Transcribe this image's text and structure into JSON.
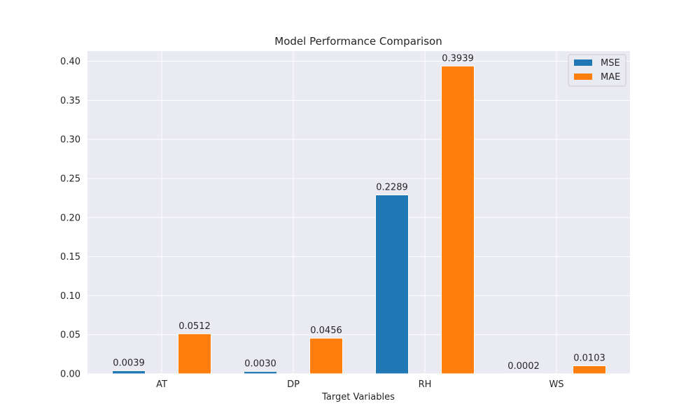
{
  "chart_data": {
    "type": "bar",
    "title": "Model Performance Comparison",
    "xlabel": "Target Variables",
    "ylabel": "",
    "categories": [
      "AT",
      "DP",
      "RH",
      "WS"
    ],
    "series": [
      {
        "name": "MSE",
        "values": [
          0.0039,
          0.003,
          0.2289,
          0.0002
        ],
        "labels": [
          "0.0039",
          "0.0030",
          "0.2289",
          "0.0002"
        ],
        "color": "#1f77b4"
      },
      {
        "name": "MAE",
        "values": [
          0.0512,
          0.0456,
          0.3939,
          0.0103
        ],
        "labels": [
          "0.0512",
          "0.0456",
          "0.3939",
          "0.0103"
        ],
        "color": "#ff7f0e"
      }
    ],
    "ylim": [
      0,
      0.413
    ],
    "yticks": [
      0.0,
      0.05,
      0.1,
      0.15,
      0.2,
      0.25,
      0.3,
      0.35,
      0.4
    ],
    "ytick_labels": [
      "0.00",
      "0.05",
      "0.10",
      "0.15",
      "0.20",
      "0.25",
      "0.30",
      "0.35",
      "0.40"
    ],
    "grid": true,
    "legend_position": "top-right",
    "plot_background": "#eaeaf2",
    "grid_color": "#ffffff"
  }
}
